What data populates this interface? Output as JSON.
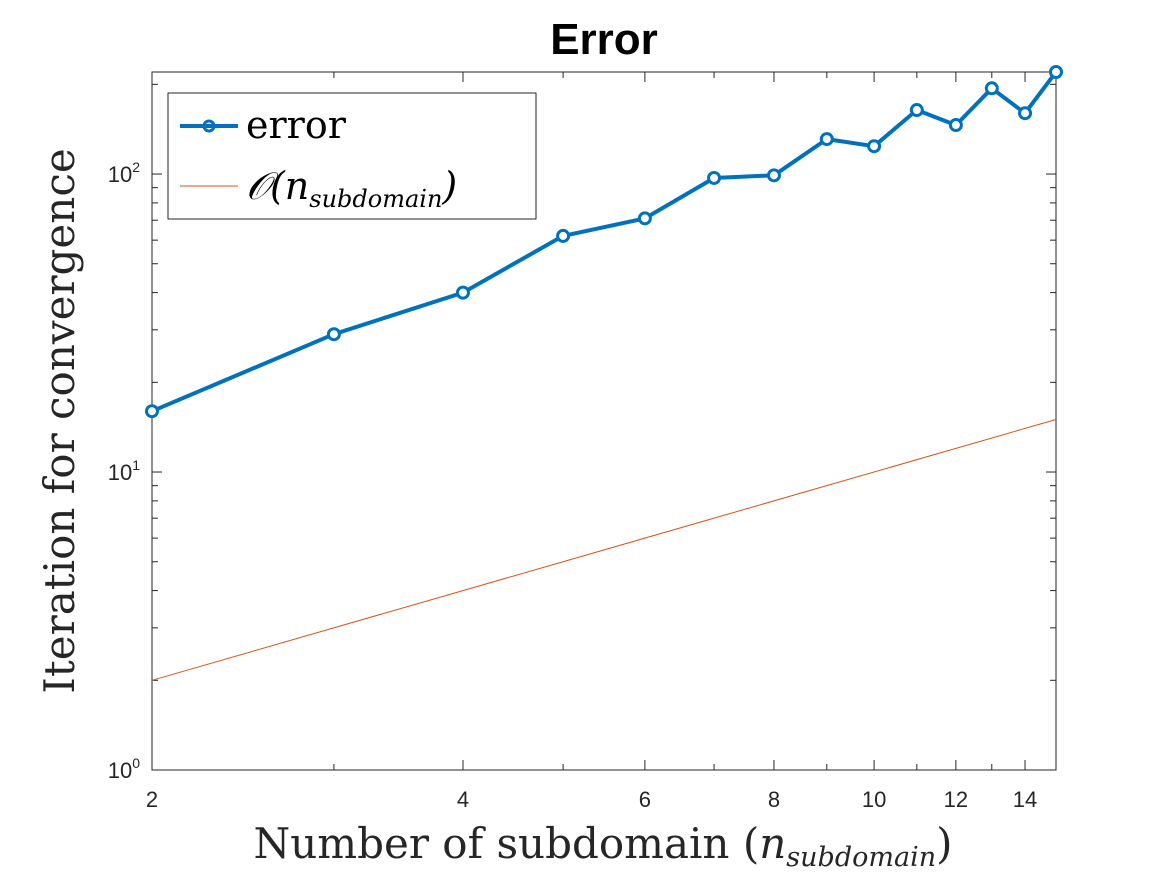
{
  "chart_data": {
    "type": "line",
    "title": "Error",
    "xlabel": {
      "text": "Number of subdomain (",
      "var": "n",
      "sub": "subdomain",
      "close": ")"
    },
    "ylabel": "Iteration for convergence",
    "xscale": "log",
    "yscale": "log",
    "xlim": [
      2,
      15
    ],
    "ylim": [
      1,
      220
    ],
    "xticks": [
      2,
      4,
      6,
      8,
      10,
      12,
      14
    ],
    "xtick_labels": [
      "2",
      "4",
      "6",
      "8",
      "10",
      "12",
      "14"
    ],
    "yticks": [
      1,
      10,
      100
    ],
    "ytick_labels": [
      {
        "base": "10",
        "exp": "0"
      },
      {
        "base": "10",
        "exp": "1"
      },
      {
        "base": "10",
        "exp": "2"
      }
    ],
    "grid": false,
    "legend_position": "top-left",
    "series": [
      {
        "name": "error",
        "color": "#0072BD",
        "marker": "circle",
        "x": [
          2,
          3,
          4,
          5,
          6,
          7,
          8,
          9,
          10,
          11,
          12,
          13,
          14,
          15
        ],
        "y": [
          16,
          29,
          40,
          62,
          71,
          97,
          99,
          131,
          124,
          164,
          146,
          194,
          160,
          220
        ]
      },
      {
        "name_parts": {
          "fn": "𝒪",
          "open": "(",
          "var": "n",
          "sub": "subdomain",
          "close": ")"
        },
        "color": "#D95319",
        "marker": "none",
        "x": [
          2,
          15
        ],
        "y": [
          2,
          15
        ]
      }
    ]
  }
}
